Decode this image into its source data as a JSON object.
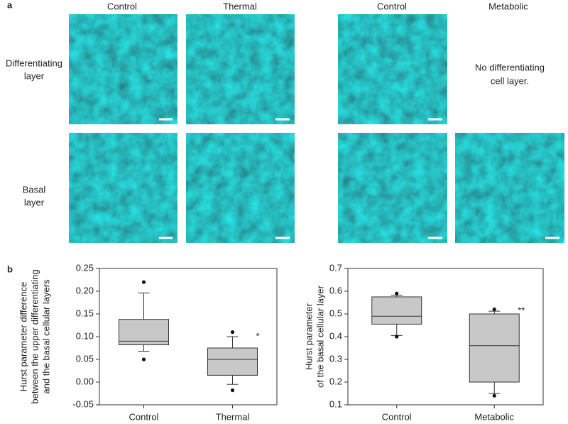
{
  "panel_a": {
    "label": "a",
    "columns": [
      "Control",
      "Thermal",
      "Control",
      "Metabolic"
    ],
    "rows": [
      [
        "Differentiating",
        "layer"
      ],
      [
        "Basal",
        "layer"
      ]
    ],
    "note": [
      "No differentiating",
      "cell layer."
    ]
  },
  "panel_b": {
    "label": "b"
  },
  "chart_data": [
    {
      "type": "box",
      "ylabel": [
        "Hurst parameter difference",
        "between the upper differentiating",
        "and the basal cellular layers"
      ],
      "categories": [
        "Control",
        "Thermal"
      ],
      "color": "#c8c8c8",
      "boxes": [
        {
          "whisker_low": 0.068,
          "q1": 0.082,
          "median": 0.09,
          "q3": 0.138,
          "whisker_high": 0.196,
          "outliers": [
            0.22,
            0.05
          ]
        },
        {
          "whisker_low": -0.005,
          "q1": 0.015,
          "median": 0.05,
          "q3": 0.075,
          "whisker_high": 0.1,
          "outliers": [
            0.11,
            -0.018
          ]
        }
      ],
      "significance": [
        null,
        "*"
      ],
      "ylim": [
        -0.05,
        0.25
      ],
      "yticks": [
        -0.05,
        {
          "value": 0,
          "label": "0.00"
        },
        0.05,
        {
          "value": 0.1,
          "label": "0.10"
        },
        0.15,
        {
          "value": 0.2,
          "label": "0.20"
        },
        0.25
      ]
    },
    {
      "type": "box",
      "ylabel": [
        "Hurst parameter",
        "of the basal cellular layer"
      ],
      "categories": [
        "Control",
        "Metabolic"
      ],
      "color": "#c8c8c8",
      "boxes": [
        {
          "whisker_low": 0.405,
          "q1": 0.455,
          "median": 0.49,
          "q3": 0.575,
          "whisker_high": 0.582,
          "outliers": [
            0.59,
            0.4
          ]
        },
        {
          "whisker_low": 0.15,
          "q1": 0.2,
          "median": 0.36,
          "q3": 0.5,
          "whisker_high": 0.512,
          "outliers": [
            0.52,
            0.14
          ]
        }
      ],
      "significance": [
        null,
        "**"
      ],
      "ylim": [
        0.1,
        0.7
      ],
      "yticks": [
        0.1,
        0.2,
        0.3,
        0.4,
        0.5,
        0.6,
        0.7
      ]
    }
  ]
}
